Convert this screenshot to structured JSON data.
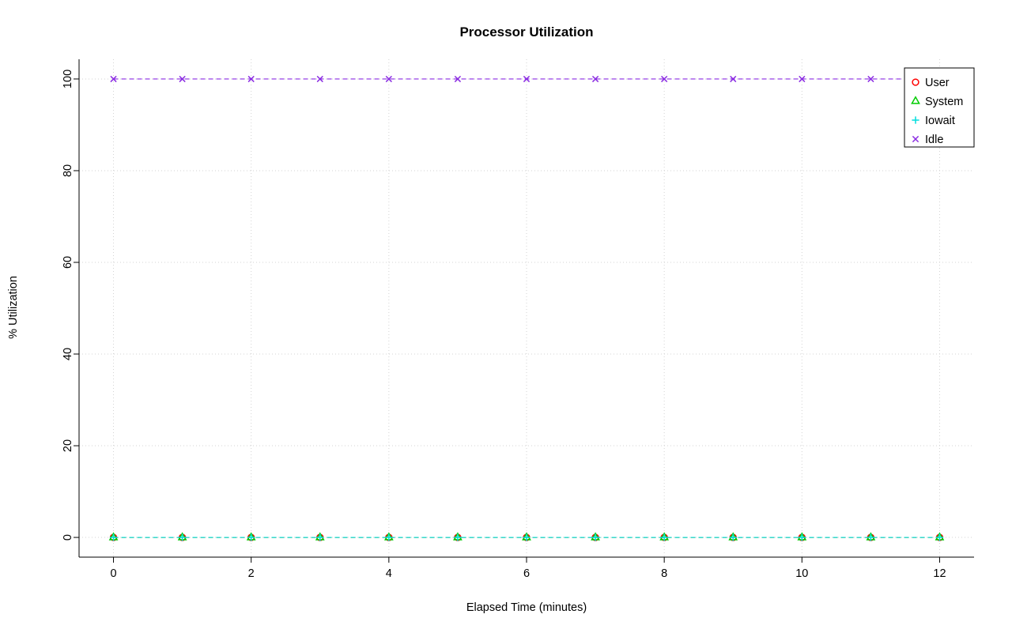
{
  "chart_data": {
    "type": "line",
    "title": "Processor Utilization",
    "xlabel": "Elapsed Time (minutes)",
    "ylabel": "% Utilization",
    "x": [
      0,
      1,
      2,
      3,
      4,
      5,
      6,
      7,
      8,
      9,
      10,
      11,
      12
    ],
    "series": [
      {
        "name": "User",
        "marker": "circle",
        "color": "#ff0000",
        "values": [
          0,
          0,
          0,
          0,
          0,
          0,
          0,
          0,
          0,
          0,
          0,
          0,
          0
        ]
      },
      {
        "name": "System",
        "marker": "triangle",
        "color": "#00cc00",
        "values": [
          0,
          0,
          0,
          0,
          0,
          0,
          0,
          0,
          0,
          0,
          0,
          0,
          0
        ]
      },
      {
        "name": "Iowait",
        "marker": "plus",
        "color": "#00dddd",
        "values": [
          0,
          0,
          0,
          0,
          0,
          0,
          0,
          0,
          0,
          0,
          0,
          0,
          0
        ]
      },
      {
        "name": "Idle",
        "marker": "x",
        "color": "#8a2be2",
        "values": [
          100,
          100,
          100,
          100,
          100,
          100,
          100,
          100,
          100,
          100,
          100,
          100,
          100
        ]
      }
    ],
    "xticks": [
      0,
      2,
      4,
      6,
      8,
      10,
      12
    ],
    "yticks": [
      0,
      20,
      40,
      60,
      80,
      100
    ],
    "xlim": [
      -0.5,
      12.5
    ],
    "ylim": [
      -4.3,
      104.3
    ],
    "grid": true,
    "line_style": "dashed",
    "legend_position": "top-right",
    "colors": {
      "grid": "#d3d3d3",
      "axis": "#000000",
      "background": "#ffffff"
    }
  }
}
